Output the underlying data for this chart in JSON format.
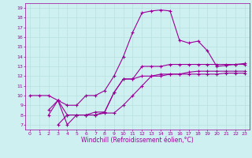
{
  "background_color": "#cff0f0",
  "grid_color": "#b8e0e0",
  "line_color": "#990099",
  "marker": "+",
  "markersize": 3.5,
  "linewidth": 0.8,
  "xlabel": "Windchill (Refroidissement éolien,°C)",
  "xlabel_fontsize": 5.5,
  "tick_fontsize": 4.5,
  "ytick_labels": [
    "7",
    "8",
    "9",
    "10",
    "11",
    "12",
    "13",
    "14",
    "15",
    "16",
    "17",
    "18",
    "19"
  ],
  "ytick_values": [
    7,
    8,
    9,
    10,
    11,
    12,
    13,
    14,
    15,
    16,
    17,
    18,
    19
  ],
  "xtick_values": [
    0,
    1,
    2,
    3,
    4,
    5,
    6,
    7,
    8,
    9,
    10,
    11,
    12,
    13,
    14,
    15,
    16,
    17,
    18,
    19,
    20,
    21,
    22,
    23
  ],
  "xlim": [
    -0.5,
    23.5
  ],
  "ylim": [
    6.5,
    19.5
  ],
  "series": [
    [
      0,
      10,
      1,
      10,
      2,
      10,
      3,
      9.5,
      4,
      9,
      5,
      9,
      6,
      10,
      7,
      10,
      8,
      10.5,
      9,
      12,
      10,
      14,
      11,
      16.5,
      12,
      18.5,
      13,
      18.7,
      14,
      18.8,
      15,
      18.7,
      16,
      15.7,
      17,
      15.4,
      18,
      15.6,
      19,
      14.6,
      20,
      13,
      21,
      13.1,
      22,
      13.2,
      23,
      13.2
    ],
    [
      2,
      8,
      3,
      9.5,
      4,
      7,
      5,
      8,
      6,
      8,
      7,
      8,
      8,
      8.3,
      9,
      10.3,
      10,
      11.7,
      11,
      11.7,
      12,
      13,
      13,
      13,
      14,
      13,
      15,
      13.2,
      16,
      13.2,
      17,
      13.2,
      18,
      13.2,
      19,
      13.2,
      20,
      13.2,
      21,
      13.2,
      22,
      13.2,
      23,
      13.3
    ],
    [
      2,
      8.5,
      3,
      9.5,
      4,
      8,
      5,
      8,
      6,
      8,
      7,
      8.3,
      8,
      8.3,
      9,
      10.3,
      10,
      11.7,
      11,
      11.7,
      12,
      12,
      13,
      12,
      14,
      12,
      15,
      12.2,
      16,
      12.2,
      17,
      12.2,
      18,
      12.2,
      19,
      12.2,
      20,
      12.2,
      21,
      12.3,
      22,
      12.3,
      23,
      12.3
    ],
    [
      3,
      7,
      4,
      8,
      5,
      8,
      6,
      8,
      7,
      8,
      8,
      8.2,
      9,
      8.2,
      10,
      9,
      11,
      10,
      12,
      11,
      13,
      12,
      14,
      12.2,
      15,
      12.2,
      16,
      12.2,
      17,
      12.4,
      18,
      12.5,
      19,
      12.5,
      20,
      12.5,
      21,
      12.5,
      22,
      12.5,
      23,
      12.5
    ]
  ]
}
